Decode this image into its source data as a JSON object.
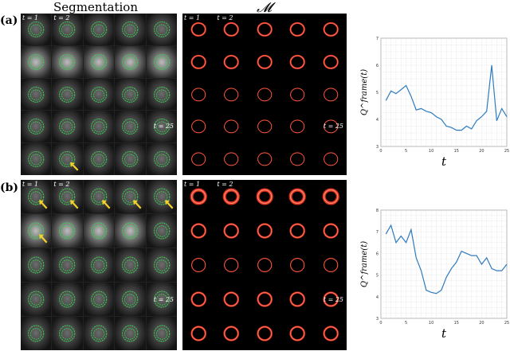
{
  "headers": {
    "segmentation": "Segmentation",
    "map": "𝓜"
  },
  "panels": [
    {
      "label": "(a)",
      "frame_labels": {
        "first": "t = 1",
        "second": "t = 2",
        "last": "t = 25"
      },
      "arrows": [
        {
          "row": 4,
          "col": 1
        }
      ],
      "chart": {
        "type": "line",
        "xlabel": "t",
        "ylabel": "Q^frame(t)",
        "xlim": [
          0,
          25
        ],
        "ylim": [
          3,
          7
        ],
        "x_ticks": [
          0,
          5,
          10,
          15,
          20,
          25
        ],
        "y_ticks": [
          3,
          4,
          5,
          6,
          7
        ],
        "grid": true,
        "series_color": "#2e7bbf",
        "x": [
          1,
          2,
          3,
          4,
          5,
          6,
          7,
          8,
          9,
          10,
          11,
          12,
          13,
          14,
          15,
          16,
          17,
          18,
          19,
          20,
          21,
          22,
          23,
          24,
          25
        ],
        "y": [
          4.7,
          5.05,
          4.95,
          5.1,
          5.25,
          4.85,
          4.35,
          4.4,
          4.3,
          4.25,
          4.1,
          4.0,
          3.75,
          3.7,
          3.6,
          3.6,
          3.75,
          3.65,
          3.95,
          4.1,
          4.3,
          6.0,
          3.95,
          4.4,
          4.1
        ]
      }
    },
    {
      "label": "(b)",
      "frame_labels": {
        "first": "t = 1",
        "second": "t = 2",
        "last": "t = 25"
      },
      "arrows": [
        {
          "row": 0,
          "col": 0
        },
        {
          "row": 0,
          "col": 1
        },
        {
          "row": 0,
          "col": 2
        },
        {
          "row": 0,
          "col": 3
        },
        {
          "row": 0,
          "col": 4
        },
        {
          "row": 1,
          "col": 0
        }
      ],
      "chart": {
        "type": "line",
        "xlabel": "t",
        "ylabel": "Q^frame(t)",
        "xlim": [
          0,
          25
        ],
        "ylim": [
          3,
          8
        ],
        "x_ticks": [
          0,
          5,
          10,
          15,
          20,
          25
        ],
        "y_ticks": [
          3,
          4,
          5,
          6,
          7,
          8
        ],
        "grid": true,
        "series_color": "#2e7bbf",
        "x": [
          1,
          2,
          3,
          4,
          5,
          6,
          7,
          8,
          9,
          10,
          11,
          12,
          13,
          14,
          15,
          16,
          17,
          18,
          19,
          20,
          21,
          22,
          23,
          24,
          25
        ],
        "y": [
          6.9,
          7.3,
          6.5,
          6.8,
          6.5,
          7.1,
          5.8,
          5.2,
          4.3,
          4.2,
          4.15,
          4.3,
          4.9,
          5.3,
          5.6,
          6.1,
          6.0,
          5.9,
          5.9,
          5.5,
          5.8,
          5.3,
          5.2,
          5.2,
          5.5
        ]
      }
    }
  ],
  "chart_data": [
    {
      "type": "line",
      "xlabel": "t",
      "ylabel": "Q^frame(t)",
      "xlim": [
        0,
        25
      ],
      "ylim": [
        3,
        7
      ],
      "grid": true,
      "x": [
        1,
        2,
        3,
        4,
        5,
        6,
        7,
        8,
        9,
        10,
        11,
        12,
        13,
        14,
        15,
        16,
        17,
        18,
        19,
        20,
        21,
        22,
        23,
        24,
        25
      ],
      "series": [
        {
          "values": [
            4.7,
            5.05,
            4.95,
            5.1,
            5.25,
            4.85,
            4.35,
            4.4,
            4.3,
            4.25,
            4.1,
            4.0,
            3.75,
            3.7,
            3.6,
            3.6,
            3.75,
            3.65,
            3.95,
            4.1,
            4.3,
            6.0,
            3.95,
            4.4,
            4.1
          ]
        }
      ]
    },
    {
      "type": "line",
      "xlabel": "t",
      "ylabel": "Q^frame(t)",
      "xlim": [
        0,
        25
      ],
      "ylim": [
        3,
        8
      ],
      "grid": true,
      "x": [
        1,
        2,
        3,
        4,
        5,
        6,
        7,
        8,
        9,
        10,
        11,
        12,
        13,
        14,
        15,
        16,
        17,
        18,
        19,
        20,
        21,
        22,
        23,
        24,
        25
      ],
      "series": [
        {
          "values": [
            6.9,
            7.3,
            6.5,
            6.8,
            6.5,
            7.1,
            5.8,
            5.2,
            4.3,
            4.2,
            4.15,
            4.3,
            4.9,
            5.3,
            5.6,
            6.1,
            6.0,
            5.9,
            5.9,
            5.5,
            5.8,
            5.3,
            5.2,
            5.2,
            5.5
          ]
        }
      ]
    }
  ]
}
